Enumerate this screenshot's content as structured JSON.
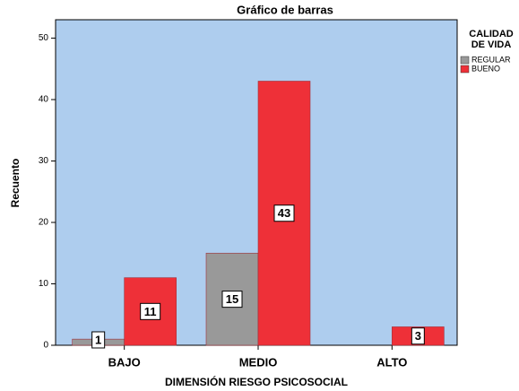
{
  "chart_data": {
    "type": "bar",
    "title": "Gráfico de barras",
    "x_label": "DIMENSIÓN RIESGO PSICOSOCIAL",
    "y_label": "Recuento",
    "categories": [
      "BAJO",
      "MEDIO",
      "ALTO"
    ],
    "legend_title": [
      "CALIDAD",
      "DE VIDA"
    ],
    "series": [
      {
        "name": "REGULAR",
        "color": "#999999",
        "values": [
          1,
          15,
          null
        ]
      },
      {
        "name": "BUENO",
        "color": "#ee3038",
        "values": [
          11,
          43,
          3
        ]
      }
    ],
    "ylim": [
      0,
      53
    ],
    "yticks": [
      0,
      10,
      20,
      30,
      40,
      50
    ],
    "plot_color": "#aecdee"
  }
}
